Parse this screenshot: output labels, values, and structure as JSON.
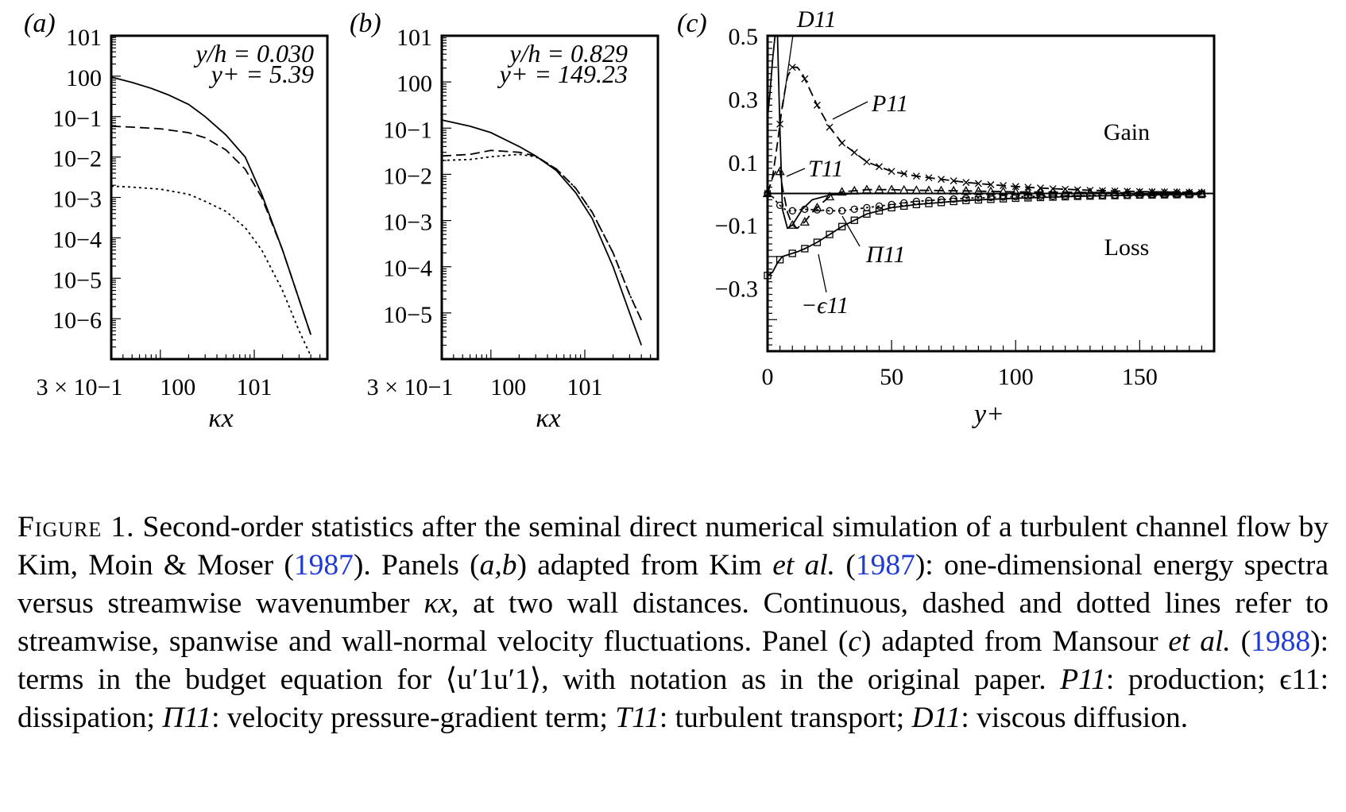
{
  "chart_data": [
    {
      "type": "line",
      "panel_label": "(a)",
      "xlabel": "κx",
      "x_scale": "log",
      "y_scale": "log",
      "xlim": [
        0.3,
        60
      ],
      "ylim": [
        1e-07,
        10
      ],
      "x_tick_labels": [
        "3 × 10−1",
        "100",
        "101"
      ],
      "y_tick_labels": [
        "101",
        "100",
        "10−1",
        "10−2",
        "10−3",
        "10−4",
        "10−5",
        "10−6"
      ],
      "annotation_lines": [
        "y/h = 0.030",
        "y+ = 5.39"
      ],
      "series": [
        {
          "style": "solid",
          "x": [
            0.3,
            0.5,
            0.8,
            1.2,
            2,
            3,
            5,
            8,
            12,
            20,
            30,
            40
          ],
          "y": [
            0.95,
            0.7,
            0.5,
            0.35,
            0.2,
            0.1,
            0.035,
            0.01,
            0.0012,
            5e-05,
            3e-06,
            4e-07
          ]
        },
        {
          "style": "dashed",
          "x": [
            0.3,
            0.5,
            1,
            2,
            3,
            5,
            8,
            12,
            20,
            30,
            40
          ],
          "y": [
            0.058,
            0.055,
            0.05,
            0.04,
            0.03,
            0.015,
            0.005,
            0.001,
            5e-05,
            3e-06,
            4e-07
          ]
        },
        {
          "style": "dotted",
          "x": [
            0.3,
            0.5,
            1,
            2,
            3,
            5,
            8,
            12,
            20,
            30,
            40
          ],
          "y": [
            0.0019,
            0.0018,
            0.0016,
            0.0012,
            0.0008,
            0.00045,
            0.00018,
            5e-05,
            5e-06,
            5e-07,
            1.2e-07
          ]
        }
      ]
    },
    {
      "type": "line",
      "panel_label": "(b)",
      "xlabel": "κx",
      "x_scale": "log",
      "y_scale": "log",
      "xlim": [
        0.3,
        60
      ],
      "ylim": [
        1e-06,
        10
      ],
      "x_tick_labels": [
        "3 × 10−1",
        "100",
        "101"
      ],
      "y_tick_labels": [
        "101",
        "100",
        "10−1",
        "10−2",
        "10−3",
        "10−4",
        "10−5"
      ],
      "annotation_lines": [
        "y/h = 0.829",
        "y+ = 149.23"
      ],
      "series": [
        {
          "style": "solid",
          "x": [
            0.3,
            0.6,
            1,
            2,
            3,
            5,
            8,
            12,
            20,
            30,
            40
          ],
          "y": [
            0.15,
            0.11,
            0.08,
            0.04,
            0.025,
            0.012,
            0.004,
            0.0011,
            0.0001,
            1e-05,
            2e-06
          ]
        },
        {
          "style": "dashed",
          "x": [
            0.3,
            0.6,
            1,
            2,
            3,
            5,
            8,
            12,
            20,
            30,
            40
          ],
          "y": [
            0.025,
            0.027,
            0.033,
            0.03,
            0.025,
            0.013,
            0.005,
            0.0015,
            0.0002,
            2.5e-05,
            7e-06
          ]
        },
        {
          "style": "dotted",
          "x": [
            0.3,
            0.6,
            1,
            2,
            3,
            5,
            8,
            12,
            20,
            30,
            40
          ],
          "y": [
            0.02,
            0.021,
            0.024,
            0.027,
            0.024,
            0.013,
            0.005,
            0.0015,
            0.0002,
            2.5e-05,
            7e-06
          ]
        }
      ]
    },
    {
      "type": "line",
      "panel_label": "(c)",
      "xlabel": "y+",
      "xlim": [
        0,
        180
      ],
      "ylim": [
        -0.5,
        0.5
      ],
      "x_tick_labels": [
        "0",
        "50",
        "100",
        "150"
      ],
      "y_tick_labels": [
        "0.5",
        "0.3",
        "0.1",
        "−0.1",
        "−0.3"
      ],
      "x_ticks": [
        0,
        50,
        100,
        150
      ],
      "y_ticks": [
        0.5,
        0.3,
        0.1,
        -0.1,
        -0.3
      ],
      "region_labels": {
        "gain": "Gain",
        "loss": "Loss"
      },
      "term_labels": {
        "P": "P11",
        "D": "D11",
        "T": "T11",
        "Pi": "Π11",
        "eps": "−ϵ11"
      },
      "series": [
        {
          "name": "P11",
          "style": "dashed",
          "marker": "x",
          "x": [
            0,
            2,
            4,
            6,
            8,
            10,
            12,
            14,
            17,
            20,
            25,
            30,
            40,
            50,
            60,
            70,
            80,
            90,
            100,
            115,
            130,
            150,
            175
          ],
          "y": [
            0,
            0.05,
            0.16,
            0.28,
            0.37,
            0.4,
            0.4,
            0.38,
            0.33,
            0.28,
            0.21,
            0.16,
            0.1,
            0.07,
            0.055,
            0.045,
            0.035,
            0.028,
            0.022,
            0.015,
            0.01,
            0.006,
            0.003
          ]
        },
        {
          "name": "D11",
          "style": "solid",
          "x": [
            0,
            1,
            2,
            3,
            4,
            5,
            6,
            8,
            10,
            14,
            18,
            25,
            35,
            50,
            100,
            175
          ],
          "y": [
            0.24,
            0.32,
            0.42,
            0.5,
            0.5,
            0.2,
            -0.05,
            -0.11,
            -0.1,
            -0.05,
            -0.02,
            -0.005,
            0,
            0,
            0,
            0
          ]
        },
        {
          "name": "T11",
          "style": "dashed",
          "marker": "triangle",
          "x": [
            0,
            2,
            4,
            5,
            6,
            8,
            10,
            12,
            15,
            18,
            22,
            25,
            30,
            40,
            50,
            60,
            80,
            100,
            150,
            175
          ],
          "y": [
            0,
            0.05,
            0.08,
            0.07,
            0.02,
            -0.06,
            -0.1,
            -0.11,
            -0.09,
            -0.06,
            -0.03,
            -0.01,
            0.005,
            0.012,
            0.012,
            0.01,
            0.008,
            0.005,
            0.002,
            0.001
          ]
        },
        {
          "name": "Π11",
          "style": "dotted",
          "marker": "circle",
          "x": [
            0,
            2,
            4,
            6,
            8,
            10,
            12,
            15,
            20,
            25,
            30,
            35,
            40,
            50,
            60,
            80,
            100,
            150,
            175
          ],
          "y": [
            0,
            -0.01,
            -0.03,
            -0.045,
            -0.055,
            -0.055,
            -0.052,
            -0.05,
            -0.052,
            -0.055,
            -0.055,
            -0.05,
            -0.045,
            -0.035,
            -0.025,
            -0.015,
            -0.01,
            -0.004,
            -0.002
          ]
        },
        {
          "name": "−ϵ11",
          "style": "solid",
          "marker": "square",
          "x": [
            0,
            2,
            4,
            6,
            8,
            10,
            12,
            15,
            20,
            25,
            30,
            40,
            50,
            60,
            80,
            100,
            125,
            150,
            175
          ],
          "y": [
            -0.26,
            -0.25,
            -0.22,
            -0.2,
            -0.195,
            -0.19,
            -0.185,
            -0.175,
            -0.155,
            -0.13,
            -0.105,
            -0.065,
            -0.045,
            -0.035,
            -0.022,
            -0.015,
            -0.009,
            -0.005,
            -0.003
          ]
        }
      ]
    }
  ],
  "caption": {
    "lead": "Figure 1.",
    "text": [
      {
        "t": " Second-order statistics after the seminal direct numerical simulation of a turbulent channel flow by Kim, Moin & Moser (",
        "s": ""
      },
      {
        "t": "1987",
        "s": "cite"
      },
      {
        "t": "). Panels (",
        "s": ""
      },
      {
        "t": "a,b",
        "s": "i"
      },
      {
        "t": ") adapted from Kim ",
        "s": ""
      },
      {
        "t": "et al.",
        "s": "i"
      },
      {
        "t": " (",
        "s": ""
      },
      {
        "t": "1987",
        "s": "cite"
      },
      {
        "t": "): one-dimensional energy spectra versus streamwise wavenumber ",
        "s": ""
      },
      {
        "t": "κx",
        "s": "i"
      },
      {
        "t": ", at two wall distances. Continuous, dashed and dotted lines refer to streamwise, spanwise and wall-normal velocity fluctuations. Panel (",
        "s": ""
      },
      {
        "t": "c",
        "s": "i"
      },
      {
        "t": ") adapted from Mansour ",
        "s": ""
      },
      {
        "t": "et al.",
        "s": "i"
      },
      {
        "t": " (",
        "s": ""
      },
      {
        "t": "1988",
        "s": "cite"
      },
      {
        "t": "): terms in the budget equation for ⟨u′1u′1⟩, with notation as in the original paper. ",
        "s": ""
      },
      {
        "t": "P11",
        "s": "i"
      },
      {
        "t": ": production; ϵ11: dissipation; ",
        "s": ""
      },
      {
        "t": "Π11",
        "s": "i"
      },
      {
        "t": ": velocity pressure-gradient term; ",
        "s": ""
      },
      {
        "t": "T11",
        "s": "i"
      },
      {
        "t": ": turbulent transport; ",
        "s": ""
      },
      {
        "t": "D11",
        "s": "i"
      },
      {
        "t": ": viscous diffusion.",
        "s": ""
      }
    ]
  }
}
